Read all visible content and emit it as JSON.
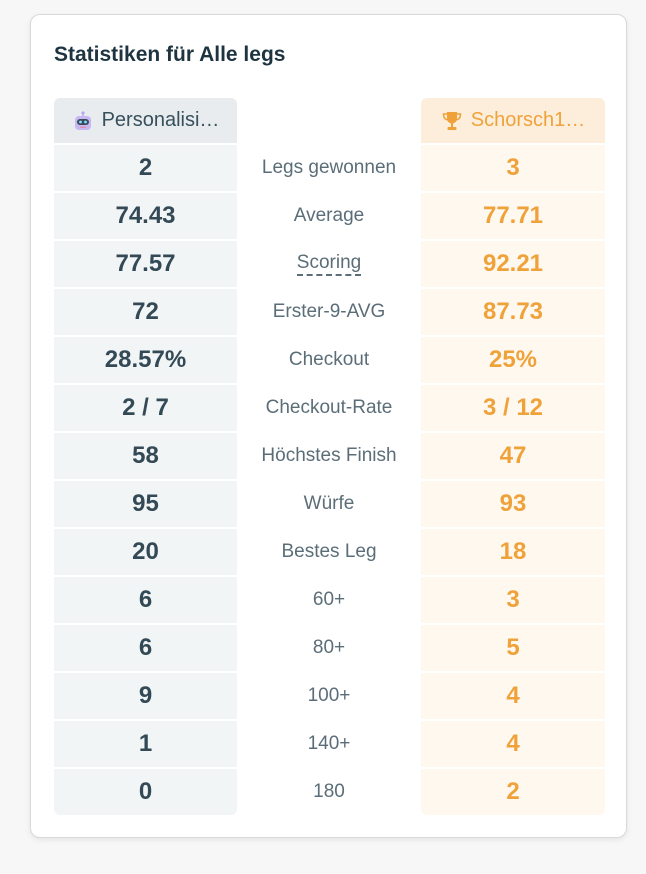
{
  "card": {
    "title": "Statistiken für Alle legs"
  },
  "players": {
    "left": {
      "name": "Personalisi…",
      "icon": "robot-icon"
    },
    "right": {
      "name": "Schorsch1…",
      "icon": "trophy-icon"
    }
  },
  "colors": {
    "accent": "#f0a23a",
    "text_dark": "#334a56",
    "label": "#5b6e78"
  },
  "rows": [
    {
      "label": "Legs gewonnen",
      "left": "2",
      "right": "3"
    },
    {
      "label": "Average",
      "left": "74.43",
      "right": "77.71"
    },
    {
      "label": "Scoring",
      "left": "77.57",
      "right": "92.21",
      "dashed": true
    },
    {
      "label": "Erster-9-AVG",
      "left": "72",
      "right": "87.73"
    },
    {
      "label": "Checkout",
      "left": "28.57%",
      "right": "25%"
    },
    {
      "label": "Checkout-Rate",
      "left": "2 / 7",
      "right": "3 / 12"
    },
    {
      "label": "Höchstes Finish",
      "left": "58",
      "right": "47"
    },
    {
      "label": "Würfe",
      "left": "95",
      "right": "93"
    },
    {
      "label": "Bestes Leg",
      "left": "20",
      "right": "18"
    },
    {
      "label": "60+",
      "left": "6",
      "right": "3"
    },
    {
      "label": "80+",
      "left": "6",
      "right": "5"
    },
    {
      "label": "100+",
      "left": "9",
      "right": "4"
    },
    {
      "label": "140+",
      "left": "1",
      "right": "4"
    },
    {
      "label": "180",
      "left": "0",
      "right": "2"
    }
  ]
}
